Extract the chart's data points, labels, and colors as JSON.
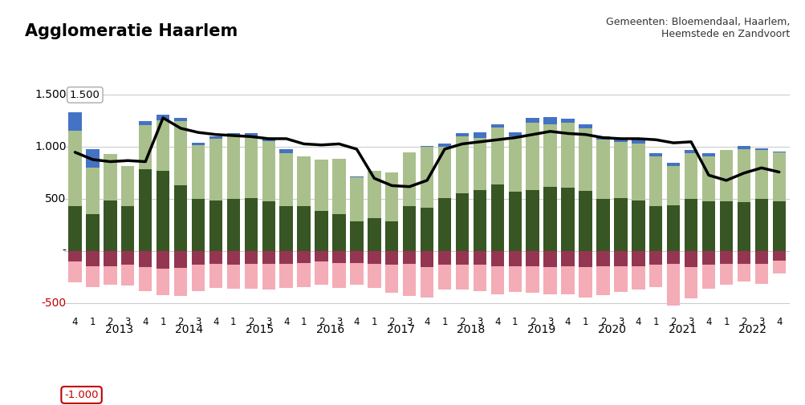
{
  "title": "Agglomeratie Haarlem",
  "subtitle": "Gemeenten: Bloemendaal, Haarlem,\nHeemstede en Zandvoort",
  "background_color": "#ffffff",
  "bar_width": 0.75,
  "ylim": [
    -620,
    1750
  ],
  "yticks": [
    -500,
    0,
    500,
    1000,
    1500
  ],
  "ytick_labels": [
    "-500",
    "-",
    "500",
    "1.000",
    "1.500"
  ],
  "ylabel_color_negative": "#c00000",
  "ylabel_color_normal": "#000000",
  "annotation_box_color": "#c00000",
  "colors": {
    "blue": "#4472c4",
    "light_green": "#a9c08c",
    "dark_green": "#375623",
    "dark_red": "#943651",
    "light_red": "#f4acb7",
    "line": "#000000"
  },
  "xtick_labels": [
    "4",
    "1",
    "2",
    "3",
    "4",
    "1",
    "2",
    "3",
    "4",
    "1",
    "2",
    "3",
    "4",
    "1",
    "2",
    "3",
    "4",
    "1",
    "2",
    "3",
    "4",
    "1",
    "2",
    "3",
    "4",
    "1",
    "2",
    "3",
    "4",
    "1",
    "2",
    "3",
    "4",
    "1",
    "2",
    "3",
    "4",
    "1",
    "2",
    "3",
    "4"
  ],
  "year_labels": [
    "2013",
    "2014",
    "2015",
    "2016",
    "2017",
    "2018",
    "2019",
    "2020",
    "2021",
    "2022"
  ],
  "year_positions": [
    2.5,
    6.5,
    10.5,
    14.5,
    18.5,
    22.5,
    26.5,
    30.5,
    34.5,
    38.5
  ],
  "bar_blue": [
    170,
    180,
    0,
    0,
    40,
    50,
    30,
    20,
    20,
    30,
    30,
    20,
    40,
    0,
    0,
    0,
    10,
    0,
    0,
    0,
    10,
    30,
    30,
    50,
    30,
    40,
    50,
    70,
    40,
    40,
    30,
    40,
    40,
    30,
    30,
    30,
    30,
    0,
    30,
    20,
    10
  ],
  "bar_light_green": [
    730,
    440,
    440,
    390,
    420,
    490,
    620,
    520,
    590,
    600,
    590,
    580,
    510,
    480,
    490,
    530,
    420,
    450,
    470,
    520,
    580,
    490,
    540,
    500,
    550,
    530,
    640,
    600,
    620,
    600,
    570,
    540,
    540,
    480,
    380,
    440,
    430,
    490,
    510,
    470,
    470
  ],
  "bar_dark_green": [
    430,
    360,
    490,
    430,
    790,
    770,
    630,
    500,
    490,
    500,
    510,
    480,
    430,
    430,
    390,
    360,
    290,
    320,
    290,
    430,
    420,
    510,
    560,
    590,
    640,
    570,
    590,
    620,
    610,
    580,
    500,
    510,
    490,
    430,
    440,
    500,
    480,
    480,
    470,
    500,
    480
  ],
  "bar_dark_red": [
    -100,
    -140,
    -140,
    -130,
    -150,
    -170,
    -160,
    -130,
    -120,
    -130,
    -120,
    -120,
    -120,
    -110,
    -100,
    -110,
    -110,
    -120,
    -130,
    -120,
    -150,
    -130,
    -130,
    -130,
    -140,
    -140,
    -140,
    -150,
    -140,
    -150,
    -140,
    -140,
    -140,
    -130,
    -120,
    -150,
    -130,
    -120,
    -120,
    -120,
    -90
  ],
  "bar_light_red": [
    -200,
    -200,
    -180,
    -200,
    -230,
    -250,
    -270,
    -250,
    -230,
    -230,
    -240,
    -250,
    -230,
    -230,
    -220,
    -240,
    -210,
    -230,
    -270,
    -310,
    -290,
    -240,
    -240,
    -250,
    -270,
    -250,
    -260,
    -260,
    -270,
    -290,
    -280,
    -250,
    -230,
    -210,
    -400,
    -300,
    -230,
    -200,
    -170,
    -190,
    -120
  ],
  "line_values": [
    950,
    880,
    860,
    870,
    860,
    1280,
    1180,
    1140,
    1120,
    1110,
    1100,
    1080,
    1080,
    1030,
    1020,
    1030,
    980,
    700,
    630,
    620,
    680,
    980,
    1030,
    1050,
    1070,
    1090,
    1120,
    1150,
    1130,
    1120,
    1090,
    1080,
    1080,
    1070,
    1040,
    1050,
    730,
    680,
    750,
    800,
    760
  ]
}
